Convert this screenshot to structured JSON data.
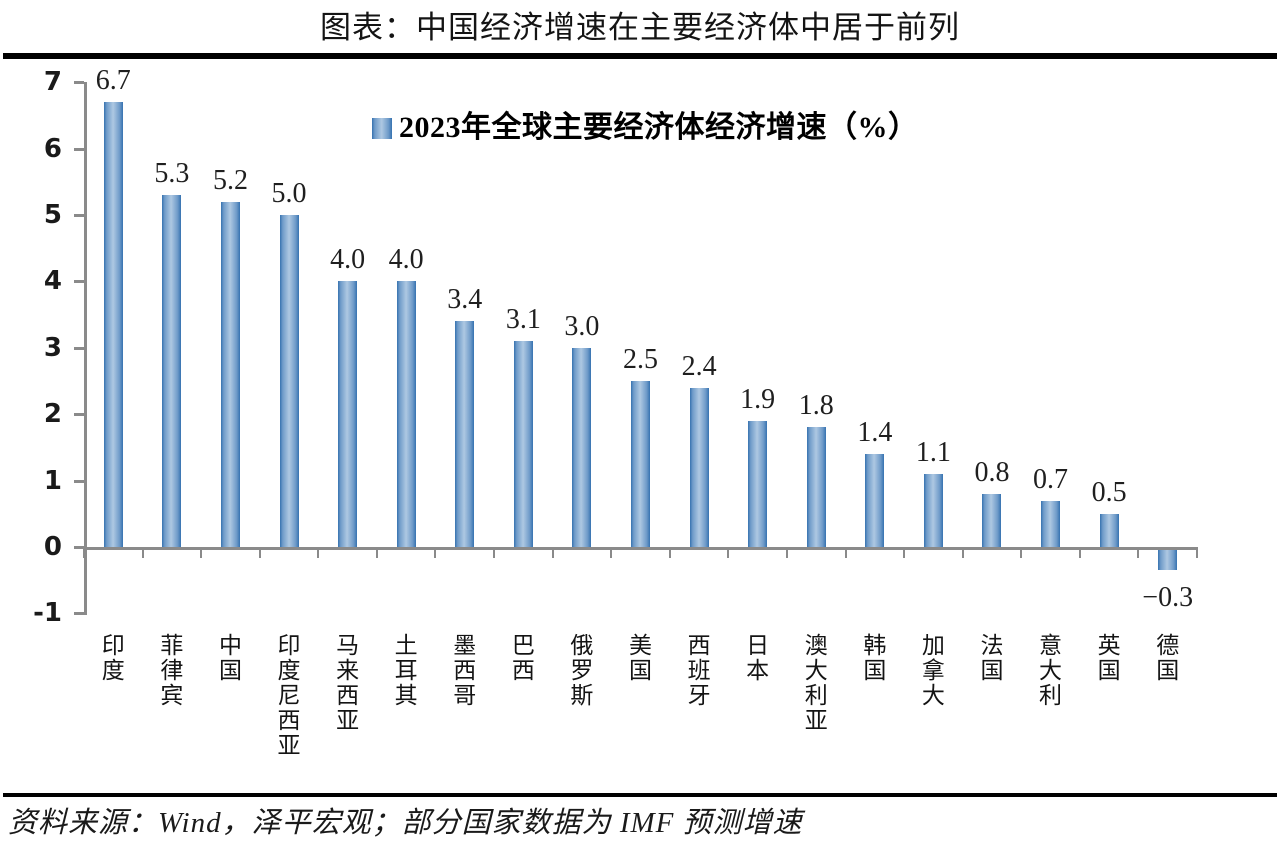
{
  "page": {
    "title": "图表：中国经济增速在主要经济体中居于前列"
  },
  "footer": {
    "source": "资料来源：Wind，泽平宏观；部分国家数据为 IMF 预测增速"
  },
  "chart_data": {
    "type": "bar",
    "title": "图表：中国经济增速在主要经济体中居于前列",
    "legend": "2023年全球主要经济体经济增速（%）",
    "legend_position": "top-center-inside",
    "xlabel": "",
    "ylabel": "",
    "ylim": [
      -1,
      7
    ],
    "yticks": [
      7,
      6,
      5,
      4,
      3,
      2,
      1,
      0,
      -1
    ],
    "ytick_labels": [
      "7",
      "6",
      "5",
      "4",
      "3",
      "2",
      "1",
      "0",
      "-1"
    ],
    "grid": false,
    "categories": [
      "印度",
      "菲律宾",
      "中国",
      "印度尼西亚",
      "马来西亚",
      "土耳其",
      "墨西哥",
      "巴西",
      "俄罗斯",
      "美国",
      "西班牙",
      "日本",
      "澳大利亚",
      "韩国",
      "加拿大",
      "法国",
      "意大利",
      "英国",
      "德国"
    ],
    "values": [
      6.7,
      5.3,
      5.2,
      5.0,
      4.0,
      4.0,
      3.4,
      3.1,
      3.0,
      2.5,
      2.4,
      1.9,
      1.8,
      1.4,
      1.1,
      0.8,
      0.7,
      0.5,
      -0.3
    ],
    "value_labels": [
      "6.7",
      "5.3",
      "5.2",
      "5.0",
      "4.0",
      "4.0",
      "3.4",
      "3.1",
      "3.0",
      "2.5",
      "2.4",
      "1.9",
      "1.8",
      "1.4",
      "1.1",
      "0.8",
      "0.7",
      "0.5",
      "−0.3"
    ],
    "colors": {
      "bar_edge": "#3672b0",
      "bar_mid": "#6f9bc9",
      "bar_center": "#aec8e2",
      "axis": "#8a8a8a",
      "text": "#1a1a1a"
    }
  }
}
